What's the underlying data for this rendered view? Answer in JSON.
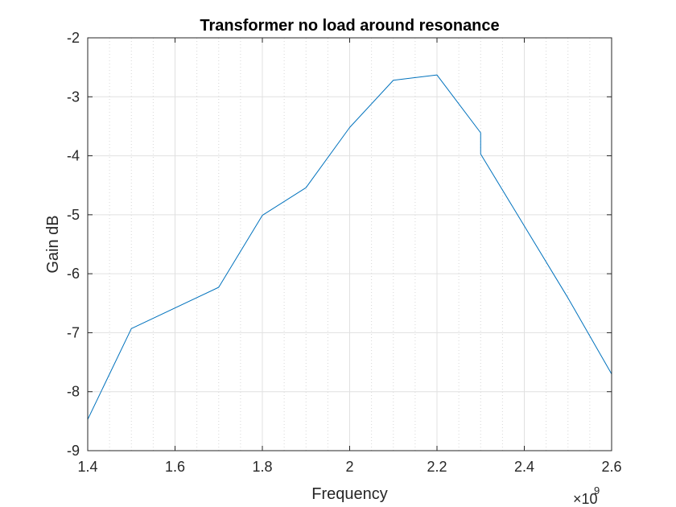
{
  "chart_data": {
    "type": "line",
    "title": "Transformer no load around resonance",
    "xlabel": "Frequency",
    "ylabel": "Gain dB",
    "x_exponent": {
      "base": "×10",
      "power": "9"
    },
    "xlim": [
      1.4,
      2.6
    ],
    "ylim": [
      -9,
      -2
    ],
    "x_ticks": [
      1.4,
      1.6,
      1.8,
      2.0,
      2.2,
      2.4,
      2.6
    ],
    "x_tick_labels": [
      "1.4",
      "1.6",
      "1.8",
      "2",
      "2.2",
      "2.4",
      "2.6"
    ],
    "y_ticks": [
      -9,
      -8,
      -7,
      -6,
      -5,
      -4,
      -3,
      -2
    ],
    "y_tick_labels": [
      "-9",
      "-8",
      "-7",
      "-6",
      "-5",
      "-4",
      "-3",
      "-2"
    ],
    "grid": true,
    "minor_grid_x": true,
    "series": [
      {
        "color": "#0072BD",
        "x": [
          1.4,
          1.5,
          1.7,
          1.8,
          1.9,
          2.0,
          2.1,
          2.2,
          2.3,
          2.3,
          2.5,
          2.6
        ],
        "y": [
          -8.47,
          -6.93,
          -6.23,
          -5.01,
          -4.54,
          -3.52,
          -2.72,
          -2.63,
          -3.61,
          -3.97,
          -6.41,
          -7.7
        ]
      }
    ]
  }
}
